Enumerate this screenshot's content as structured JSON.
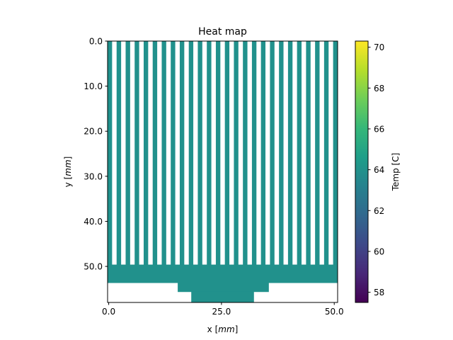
{
  "chart_data": {
    "type": "heatmap",
    "title": "Heat map",
    "xlabel_prefix": "x [",
    "xlabel_unit": "mm",
    "xlabel_suffix": "]",
    "ylabel_prefix": "y [",
    "ylabel_unit": "mm",
    "ylabel_suffix": "]",
    "xlim": [
      -0.25,
      50.75
    ],
    "ylim": [
      58.0,
      0.0
    ],
    "x_ticks": [
      0.0,
      25.0,
      50.0
    ],
    "x_tick_labels": [
      "0.0",
      "25.0",
      "50.0"
    ],
    "y_ticks": [
      0.0,
      10.0,
      20.0,
      30.0,
      40.0,
      50.0
    ],
    "y_tick_labels": [
      "0.0",
      "10.0",
      "20.0",
      "30.0",
      "40.0",
      "50.0"
    ],
    "fill_value": 64.0,
    "fill_color": "#21918c",
    "fins": {
      "count": 26,
      "pitch": 2.0,
      "width": 1.0,
      "start_x": -0.25,
      "y_top": 0.0,
      "y_bottom": 49.6
    },
    "base_regions": [
      {
        "x": [
          -0.25,
          50.75
        ],
        "y": [
          49.6,
          53.6
        ]
      },
      {
        "x": [
          15.3,
          35.5
        ],
        "y": [
          53.6,
          55.6
        ]
      },
      {
        "x": [
          18.3,
          32.2
        ],
        "y": [
          55.6,
          58.0
        ]
      }
    ],
    "colorbar": {
      "label": "Temp [C]",
      "range": [
        57.5,
        70.3
      ],
      "ticks": [
        58,
        60,
        62,
        64,
        66,
        68,
        70
      ],
      "tick_labels": [
        "58",
        "60",
        "62",
        "64",
        "66",
        "68",
        "70"
      ],
      "colormap": "viridis",
      "colors": [
        "#440154",
        "#482878",
        "#3e4989",
        "#31688e",
        "#26828e",
        "#1f9e89",
        "#35b779",
        "#6ece58",
        "#b5de2b",
        "#fde725"
      ]
    }
  }
}
